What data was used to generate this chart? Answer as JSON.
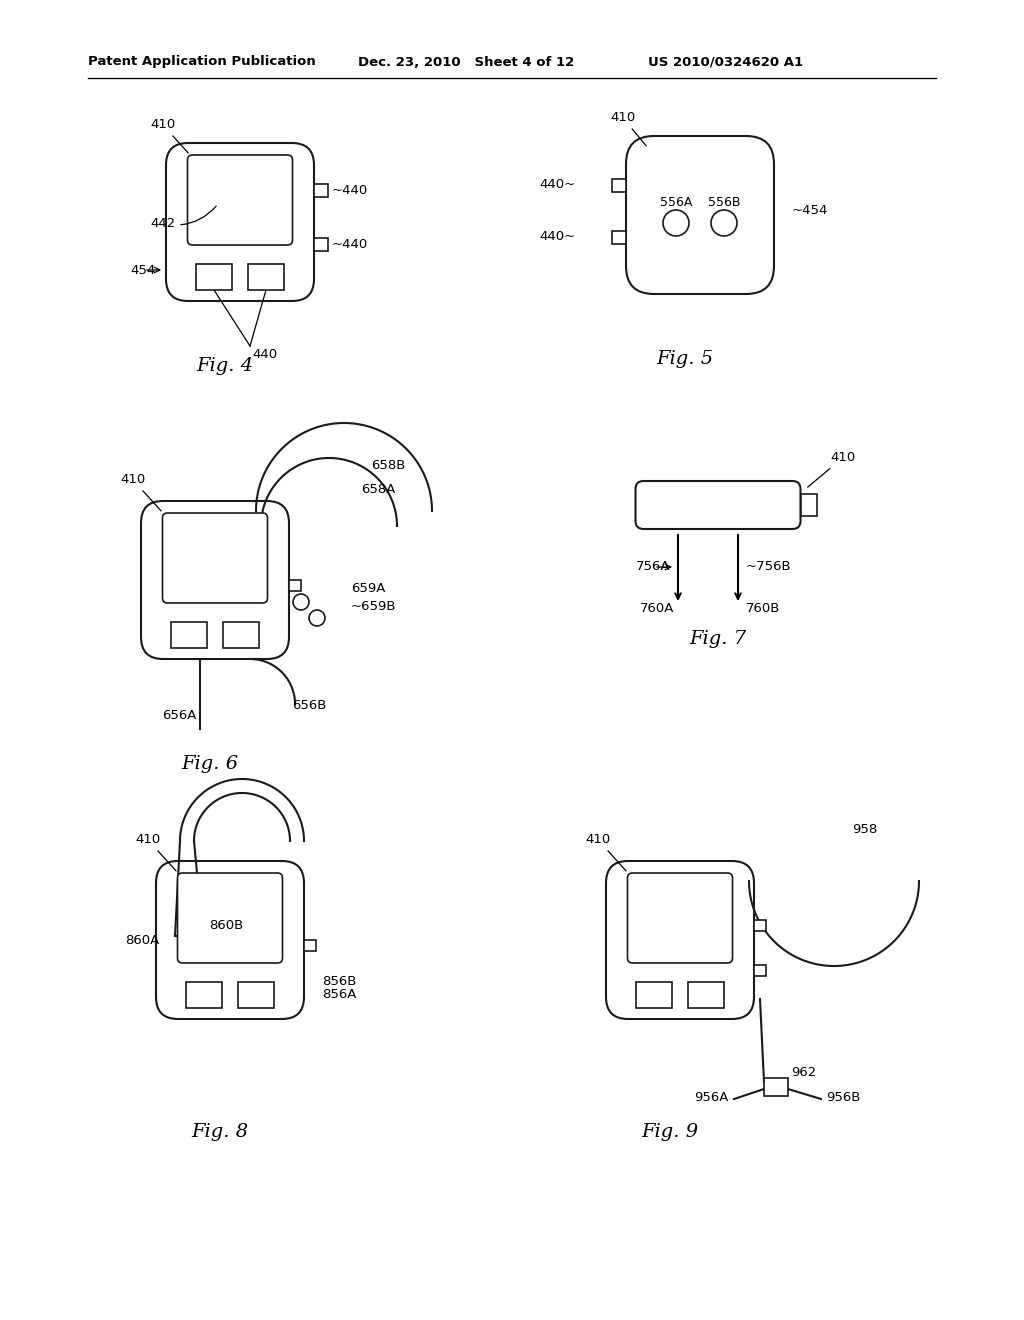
{
  "header_left": "Patent Application Publication",
  "header_mid": "Dec. 23, 2010   Sheet 4 of 12",
  "header_right": "US 2010/0324620 A1",
  "bg_color": "#ffffff",
  "line_color": "#1a1a1a",
  "annotation_font": 9.5
}
